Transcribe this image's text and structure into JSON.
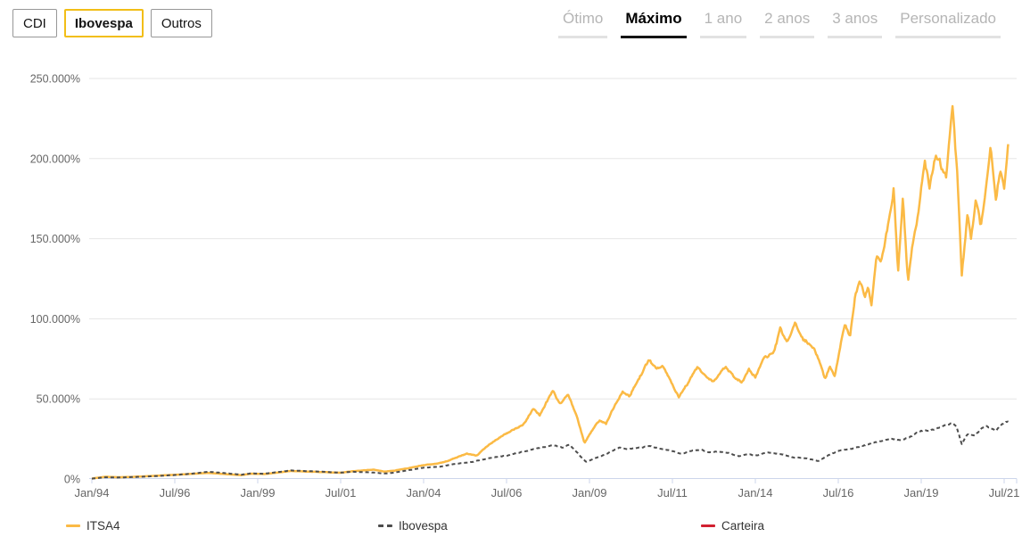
{
  "header": {
    "series_buttons": [
      {
        "label": "CDI",
        "active": false
      },
      {
        "label": "Ibovespa",
        "active": true
      },
      {
        "label": "Outros",
        "active": false
      }
    ],
    "range_tabs": [
      {
        "label": "Ótimo",
        "selected": false
      },
      {
        "label": "Máximo",
        "selected": true
      },
      {
        "label": "1 ano",
        "selected": false
      },
      {
        "label": "2 anos",
        "selected": false
      },
      {
        "label": "3 anos",
        "selected": false
      },
      {
        "label": "Personalizado",
        "selected": false
      }
    ]
  },
  "colors": {
    "itsa4": "#fbba45",
    "ibovespa": "#4d4d4d",
    "carteira": "#d22030",
    "active_button_border": "#f2be17",
    "grid": "#e6e6e6",
    "axis_line": "#ccd6eb",
    "axis_label": "#666666",
    "legend_text": "#333333"
  },
  "chart_data": {
    "type": "line",
    "title": "",
    "xlabel": "",
    "ylabel": "",
    "x_unit": "decimal_year",
    "x_range": [
      1994.0,
      2021.65
    ],
    "ylim": [
      0,
      250000
    ],
    "grid": "horizontal",
    "legend_position": "bottom",
    "jitter": {
      "relative": 0.022,
      "min_abs": 60
    },
    "y_ticks": [
      {
        "value": 0,
        "label": "0%"
      },
      {
        "value": 50000,
        "label": "50.000%"
      },
      {
        "value": 100000,
        "label": "100.000%"
      },
      {
        "value": 150000,
        "label": "150.000%"
      },
      {
        "value": 200000,
        "label": "200.000%"
      },
      {
        "value": 250000,
        "label": "250.000%"
      }
    ],
    "x_ticks": [
      {
        "pos": 1994.0,
        "label": "Jan/94"
      },
      {
        "pos": 1996.5,
        "label": "Jul/96"
      },
      {
        "pos": 1999.0,
        "label": "Jan/99"
      },
      {
        "pos": 2001.5,
        "label": "Jul/01"
      },
      {
        "pos": 2004.0,
        "label": "Jan/04"
      },
      {
        "pos": 2006.5,
        "label": "Jul/06"
      },
      {
        "pos": 2009.0,
        "label": "Jan/09"
      },
      {
        "pos": 2011.5,
        "label": "Jul/11"
      },
      {
        "pos": 2014.0,
        "label": "Jan/14"
      },
      {
        "pos": 2016.5,
        "label": "Jul/16"
      },
      {
        "pos": 2019.0,
        "label": "Jan/19"
      },
      {
        "pos": 2021.5,
        "label": "Jul/21"
      }
    ],
    "series": [
      {
        "name": "ITSA4",
        "color": "#fbba45",
        "style": "solid",
        "width": 2.5,
        "points": [
          [
            1994.0,
            300
          ],
          [
            1994.4,
            1400
          ],
          [
            1994.8,
            1100
          ],
          [
            1995.2,
            1300
          ],
          [
            1995.6,
            1700
          ],
          [
            1996.0,
            2100
          ],
          [
            1996.5,
            2600
          ],
          [
            1997.0,
            3200
          ],
          [
            1997.5,
            3800
          ],
          [
            1998.0,
            3100
          ],
          [
            1998.5,
            2400
          ],
          [
            1998.8,
            3300
          ],
          [
            1999.2,
            3100
          ],
          [
            1999.6,
            4000
          ],
          [
            2000.0,
            5000
          ],
          [
            2000.5,
            4600
          ],
          [
            2001.0,
            4300
          ],
          [
            2001.5,
            3900
          ],
          [
            2001.8,
            4700
          ],
          [
            2002.2,
            5400
          ],
          [
            2002.5,
            5900
          ],
          [
            2002.8,
            4600
          ],
          [
            2003.1,
            5200
          ],
          [
            2003.5,
            6600
          ],
          [
            2004.0,
            8700
          ],
          [
            2004.4,
            9600
          ],
          [
            2004.7,
            11000
          ],
          [
            2005.0,
            13500
          ],
          [
            2005.3,
            15800
          ],
          [
            2005.6,
            14500
          ],
          [
            2006.0,
            22000
          ],
          [
            2006.4,
            27500
          ],
          [
            2006.8,
            31500
          ],
          [
            2007.0,
            34000
          ],
          [
            2007.3,
            43500
          ],
          [
            2007.5,
            40000
          ],
          [
            2007.9,
            55500
          ],
          [
            2008.1,
            46500
          ],
          [
            2008.35,
            53000
          ],
          [
            2008.6,
            40000
          ],
          [
            2008.85,
            22500
          ],
          [
            2009.1,
            31000
          ],
          [
            2009.3,
            36500
          ],
          [
            2009.5,
            34500
          ],
          [
            2009.75,
            45500
          ],
          [
            2010.0,
            55000
          ],
          [
            2010.2,
            51500
          ],
          [
            2010.5,
            63000
          ],
          [
            2010.8,
            74500
          ],
          [
            2011.0,
            68500
          ],
          [
            2011.2,
            71500
          ],
          [
            2011.5,
            59000
          ],
          [
            2011.7,
            51500
          ],
          [
            2012.0,
            61000
          ],
          [
            2012.25,
            69500
          ],
          [
            2012.5,
            63500
          ],
          [
            2012.75,
            60500
          ],
          [
            2013.1,
            70500
          ],
          [
            2013.35,
            64000
          ],
          [
            2013.6,
            60500
          ],
          [
            2013.8,
            68500
          ],
          [
            2014.0,
            63500
          ],
          [
            2014.25,
            75000
          ],
          [
            2014.55,
            78500
          ],
          [
            2014.75,
            93000
          ],
          [
            2014.95,
            85500
          ],
          [
            2015.2,
            96500
          ],
          [
            2015.45,
            87000
          ],
          [
            2015.7,
            84000
          ],
          [
            2015.95,
            73000
          ],
          [
            2016.1,
            62500
          ],
          [
            2016.25,
            70000
          ],
          [
            2016.4,
            64000
          ],
          [
            2016.55,
            82000
          ],
          [
            2016.7,
            96500
          ],
          [
            2016.85,
            88000
          ],
          [
            2017.0,
            113000
          ],
          [
            2017.15,
            123000
          ],
          [
            2017.3,
            115000
          ],
          [
            2017.4,
            120500
          ],
          [
            2017.5,
            108000
          ],
          [
            2017.65,
            139000
          ],
          [
            2017.8,
            136000
          ],
          [
            2017.9,
            148000
          ],
          [
            2018.05,
            163000
          ],
          [
            2018.17,
            181000
          ],
          [
            2018.3,
            128000
          ],
          [
            2018.45,
            175000
          ],
          [
            2018.6,
            122500
          ],
          [
            2018.75,
            148000
          ],
          [
            2018.9,
            165000
          ],
          [
            2019.1,
            200000
          ],
          [
            2019.25,
            181000
          ],
          [
            2019.45,
            204000
          ],
          [
            2019.6,
            196000
          ],
          [
            2019.75,
            189500
          ],
          [
            2019.95,
            232500
          ],
          [
            2020.1,
            185000
          ],
          [
            2020.22,
            126500
          ],
          [
            2020.4,
            165000
          ],
          [
            2020.5,
            151500
          ],
          [
            2020.65,
            176000
          ],
          [
            2020.8,
            157500
          ],
          [
            2021.0,
            193000
          ],
          [
            2021.1,
            207000
          ],
          [
            2021.25,
            177500
          ],
          [
            2021.4,
            193500
          ],
          [
            2021.5,
            183500
          ],
          [
            2021.62,
            208000
          ]
        ]
      },
      {
        "name": "Ibovespa",
        "color": "#4d4d4d",
        "style": "dashed",
        "width": 2,
        "dash": "4 3",
        "points": [
          [
            1994.0,
            200
          ],
          [
            1994.4,
            1100
          ],
          [
            1994.8,
            900
          ],
          [
            1995.2,
            1200
          ],
          [
            1995.6,
            1500
          ],
          [
            1996.0,
            1900
          ],
          [
            1996.5,
            2500
          ],
          [
            1997.0,
            3300
          ],
          [
            1997.5,
            4500
          ],
          [
            1998.0,
            3700
          ],
          [
            1998.5,
            2700
          ],
          [
            1998.8,
            3500
          ],
          [
            1999.2,
            3300
          ],
          [
            1999.6,
            4300
          ],
          [
            2000.0,
            5300
          ],
          [
            2000.5,
            4900
          ],
          [
            2001.0,
            4500
          ],
          [
            2001.5,
            3900
          ],
          [
            2001.8,
            4500
          ],
          [
            2002.2,
            4300
          ],
          [
            2002.5,
            4000
          ],
          [
            2002.8,
            3400
          ],
          [
            2003.1,
            3900
          ],
          [
            2003.5,
            5300
          ],
          [
            2004.0,
            7000
          ],
          [
            2004.5,
            7700
          ],
          [
            2005.0,
            9600
          ],
          [
            2005.5,
            10800
          ],
          [
            2006.0,
            13200
          ],
          [
            2006.5,
            14600
          ],
          [
            2007.0,
            17000
          ],
          [
            2007.5,
            19500
          ],
          [
            2007.9,
            21000
          ],
          [
            2008.2,
            19500
          ],
          [
            2008.4,
            21500
          ],
          [
            2008.6,
            17000
          ],
          [
            2008.9,
            10500
          ],
          [
            2009.2,
            13200
          ],
          [
            2009.5,
            15500
          ],
          [
            2009.9,
            19500
          ],
          [
            2010.2,
            18800
          ],
          [
            2010.5,
            19500
          ],
          [
            2010.8,
            20600
          ],
          [
            2011.0,
            19500
          ],
          [
            2011.4,
            17800
          ],
          [
            2011.8,
            15800
          ],
          [
            2012.1,
            17800
          ],
          [
            2012.35,
            18300
          ],
          [
            2012.6,
            16500
          ],
          [
            2012.9,
            17200
          ],
          [
            2013.2,
            16300
          ],
          [
            2013.5,
            14200
          ],
          [
            2013.8,
            15500
          ],
          [
            2014.0,
            14500
          ],
          [
            2014.35,
            16500
          ],
          [
            2014.75,
            15600
          ],
          [
            2015.15,
            13500
          ],
          [
            2015.55,
            12800
          ],
          [
            2015.9,
            11200
          ],
          [
            2016.2,
            14800
          ],
          [
            2016.5,
            17500
          ],
          [
            2016.9,
            18900
          ],
          [
            2017.2,
            20600
          ],
          [
            2017.5,
            22300
          ],
          [
            2017.85,
            23900
          ],
          [
            2018.1,
            25100
          ],
          [
            2018.4,
            24300
          ],
          [
            2018.65,
            26200
          ],
          [
            2019.0,
            30100
          ],
          [
            2019.3,
            30600
          ],
          [
            2019.6,
            32300
          ],
          [
            2019.95,
            35000
          ],
          [
            2020.05,
            33500
          ],
          [
            2020.22,
            21800
          ],
          [
            2020.4,
            28400
          ],
          [
            2020.6,
            26800
          ],
          [
            2020.8,
            31200
          ],
          [
            2020.95,
            32800
          ],
          [
            2021.1,
            31700
          ],
          [
            2021.25,
            30100
          ],
          [
            2021.45,
            34500
          ],
          [
            2021.62,
            36200
          ]
        ]
      },
      {
        "name": "Carteira",
        "color": "#d22030",
        "style": "solid",
        "width": 2.5,
        "points": []
      }
    ]
  }
}
